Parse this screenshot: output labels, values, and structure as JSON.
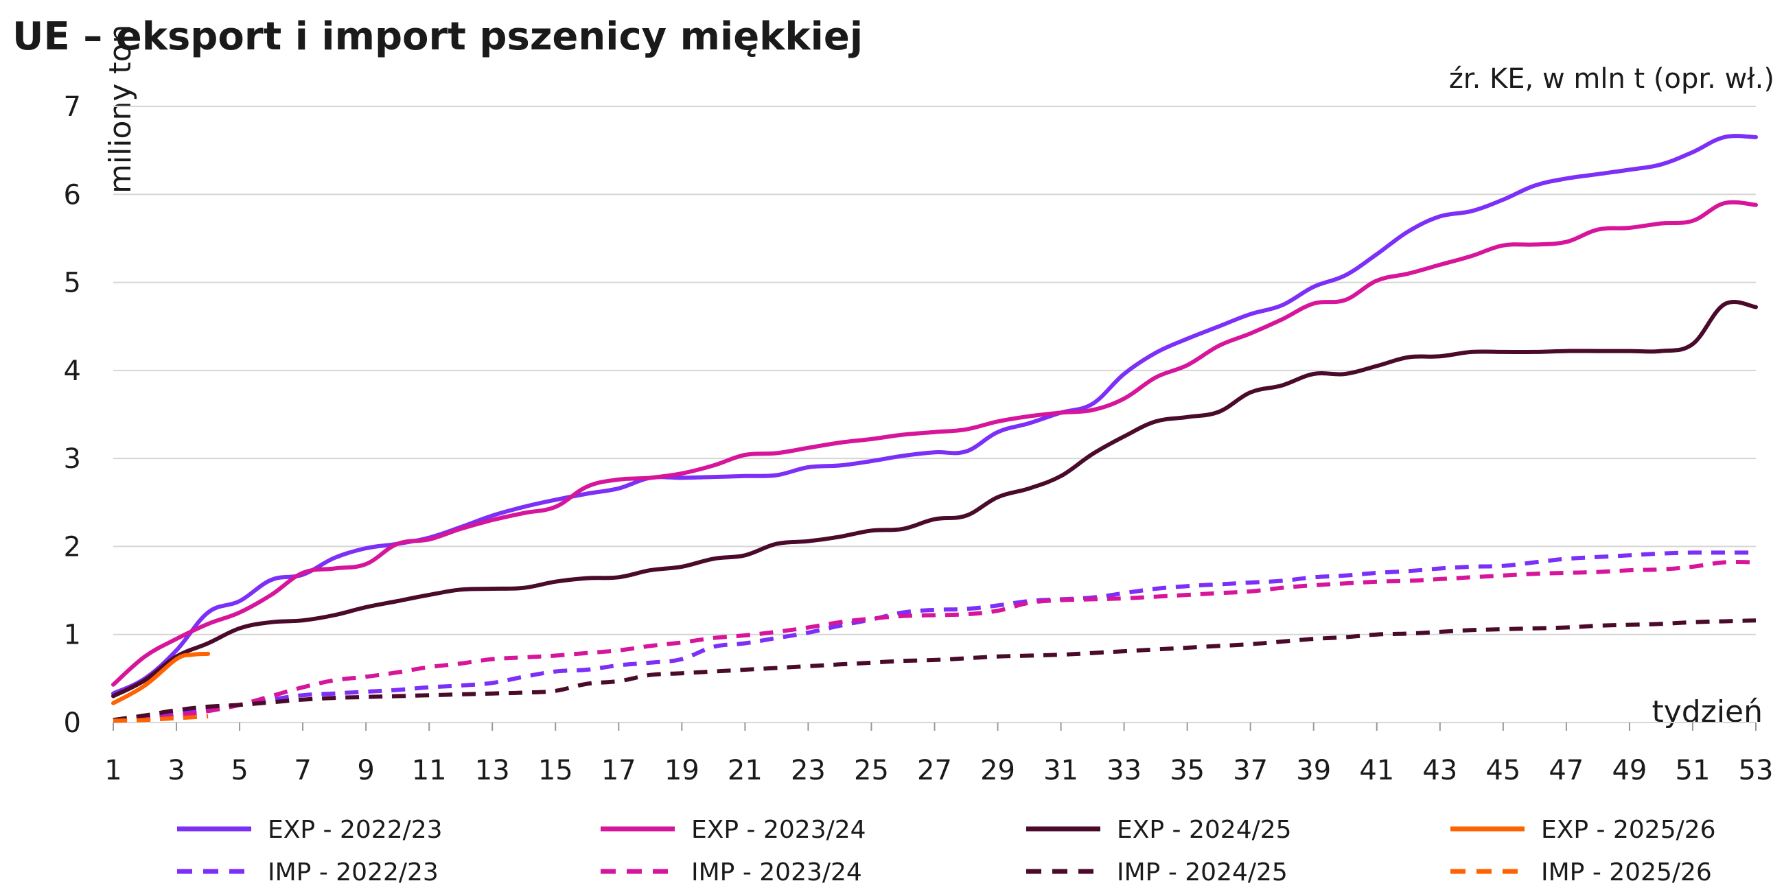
{
  "chart_data": {
    "type": "line",
    "title": "UE – eksport i import pszenicy miękkiej",
    "source": "źr. KE, w mln t (opr. wł.)",
    "ylabel": "miliony ton",
    "xlabel": "tydzień",
    "ylim": [
      0,
      7
    ],
    "xlim": [
      1,
      53
    ],
    "yticks": [
      "0",
      "1",
      "2",
      "3",
      "4",
      "5",
      "6",
      "7"
    ],
    "xticks": [
      "1",
      "3",
      "5",
      "7",
      "9",
      "11",
      "13",
      "15",
      "17",
      "19",
      "21",
      "23",
      "25",
      "27",
      "29",
      "31",
      "33",
      "35",
      "37",
      "39",
      "41",
      "43",
      "45",
      "47",
      "49",
      "51",
      "53"
    ],
    "grid": true,
    "legend_position": "bottom",
    "series": [
      {
        "name": "EXP - 2022/23",
        "color": "#7b2ff7",
        "style": "solid",
        "x": [
          1,
          2,
          3,
          4,
          5,
          6,
          7,
          8,
          9,
          10,
          11,
          12,
          13,
          14,
          15,
          16,
          17,
          18,
          19,
          20,
          21,
          22,
          23,
          24,
          25,
          26,
          27,
          28,
          29,
          30,
          31,
          32,
          33,
          34,
          35,
          36,
          37,
          38,
          39,
          40,
          41,
          42,
          43,
          44,
          45,
          46,
          47,
          48,
          49,
          50,
          51,
          52,
          53
        ],
        "values": [
          0.33,
          0.5,
          0.82,
          1.25,
          1.38,
          1.62,
          1.68,
          1.87,
          1.98,
          2.03,
          2.1,
          2.22,
          2.35,
          2.45,
          2.53,
          2.6,
          2.66,
          2.78,
          2.78,
          2.79,
          2.8,
          2.81,
          2.9,
          2.92,
          2.97,
          3.03,
          3.07,
          3.08,
          3.3,
          3.4,
          3.52,
          3.62,
          3.96,
          4.2,
          4.36,
          4.5,
          4.64,
          4.74,
          4.95,
          5.08,
          5.32,
          5.58,
          5.75,
          5.81,
          5.94,
          6.1,
          6.18,
          6.23,
          6.28,
          6.34,
          6.48,
          6.65,
          6.65
        ]
      },
      {
        "name": "EXP - 2023/24",
        "color": "#d6159b",
        "style": "solid",
        "x": [
          1,
          2,
          3,
          4,
          5,
          6,
          7,
          8,
          9,
          10,
          11,
          12,
          13,
          14,
          15,
          16,
          17,
          18,
          19,
          20,
          21,
          22,
          23,
          24,
          25,
          26,
          27,
          28,
          29,
          30,
          31,
          32,
          33,
          34,
          35,
          36,
          37,
          38,
          39,
          40,
          41,
          42,
          43,
          44,
          45,
          46,
          47,
          48,
          49,
          50,
          51,
          52,
          53
        ],
        "values": [
          0.43,
          0.75,
          0.95,
          1.12,
          1.25,
          1.45,
          1.7,
          1.75,
          1.8,
          2.03,
          2.08,
          2.2,
          2.3,
          2.38,
          2.45,
          2.68,
          2.76,
          2.78,
          2.83,
          2.92,
          3.04,
          3.06,
          3.12,
          3.18,
          3.22,
          3.27,
          3.3,
          3.33,
          3.42,
          3.48,
          3.52,
          3.55,
          3.68,
          3.92,
          4.06,
          4.28,
          4.42,
          4.58,
          4.76,
          4.8,
          5.02,
          5.1,
          5.2,
          5.3,
          5.42,
          5.43,
          5.46,
          5.6,
          5.62,
          5.67,
          5.7,
          5.9,
          5.88
        ]
      },
      {
        "name": "EXP - 2024/25",
        "color": "#4a0a2a",
        "style": "solid",
        "x": [
          1,
          2,
          3,
          4,
          5,
          6,
          7,
          8,
          9,
          10,
          11,
          12,
          13,
          14,
          15,
          16,
          17,
          18,
          19,
          20,
          21,
          22,
          23,
          24,
          25,
          26,
          27,
          28,
          29,
          30,
          31,
          32,
          33,
          34,
          35,
          36,
          37,
          38,
          39,
          40,
          41,
          42,
          43,
          44,
          45,
          46,
          47,
          48,
          49,
          50,
          51,
          52,
          53
        ],
        "values": [
          0.3,
          0.48,
          0.75,
          0.9,
          1.07,
          1.14,
          1.16,
          1.22,
          1.31,
          1.38,
          1.45,
          1.51,
          1.52,
          1.53,
          1.6,
          1.64,
          1.65,
          1.73,
          1.77,
          1.86,
          1.9,
          2.03,
          2.06,
          2.11,
          2.18,
          2.2,
          2.31,
          2.35,
          2.56,
          2.66,
          2.8,
          3.05,
          3.25,
          3.42,
          3.47,
          3.53,
          3.75,
          3.83,
          3.96,
          3.96,
          4.05,
          4.15,
          4.16,
          4.21,
          4.21,
          4.21,
          4.22,
          4.22,
          4.22,
          4.22,
          4.3,
          4.75,
          4.72
        ]
      },
      {
        "name": "EXP - 2025/26",
        "color": "#ff6200",
        "style": "solid",
        "x": [
          1,
          2,
          3,
          3.5,
          4
        ],
        "values": [
          0.22,
          0.42,
          0.72,
          0.77,
          0.78
        ]
      },
      {
        "name": "IMP - 2022/23",
        "color": "#7b2ff7",
        "style": "dashed",
        "x": [
          1,
          2,
          3,
          4,
          5,
          6,
          7,
          8,
          9,
          10,
          11,
          12,
          13,
          14,
          15,
          16,
          17,
          18,
          19,
          20,
          21,
          22,
          23,
          24,
          25,
          26,
          27,
          28,
          29,
          30,
          31,
          32,
          33,
          34,
          35,
          36,
          37,
          38,
          39,
          40,
          41,
          42,
          43,
          44,
          45,
          46,
          47,
          48,
          49,
          50,
          51,
          52,
          53
        ],
        "values": [
          0.03,
          0.05,
          0.1,
          0.14,
          0.2,
          0.26,
          0.31,
          0.33,
          0.35,
          0.37,
          0.4,
          0.42,
          0.45,
          0.52,
          0.58,
          0.6,
          0.65,
          0.68,
          0.72,
          0.86,
          0.9,
          0.96,
          1.02,
          1.1,
          1.17,
          1.25,
          1.28,
          1.29,
          1.33,
          1.38,
          1.4,
          1.42,
          1.47,
          1.52,
          1.55,
          1.57,
          1.59,
          1.61,
          1.65,
          1.67,
          1.7,
          1.72,
          1.75,
          1.77,
          1.78,
          1.82,
          1.86,
          1.88,
          1.9,
          1.92,
          1.93,
          1.93,
          1.93
        ]
      },
      {
        "name": "IMP - 2023/24",
        "color": "#d6159b",
        "style": "dashed",
        "x": [
          1,
          2,
          3,
          4,
          5,
          6,
          7,
          8,
          9,
          10,
          11,
          12,
          13,
          14,
          15,
          16,
          17,
          18,
          19,
          20,
          21,
          22,
          23,
          24,
          25,
          26,
          27,
          28,
          29,
          30,
          31,
          32,
          33,
          34,
          35,
          36,
          37,
          38,
          39,
          40,
          41,
          42,
          43,
          44,
          45,
          46,
          47,
          48,
          49,
          50,
          51,
          52,
          53
        ],
        "values": [
          0.02,
          0.04,
          0.08,
          0.13,
          0.2,
          0.3,
          0.4,
          0.48,
          0.52,
          0.57,
          0.63,
          0.67,
          0.72,
          0.74,
          0.76,
          0.79,
          0.82,
          0.87,
          0.91,
          0.96,
          0.99,
          1.03,
          1.08,
          1.14,
          1.18,
          1.21,
          1.22,
          1.23,
          1.27,
          1.36,
          1.39,
          1.4,
          1.41,
          1.43,
          1.45,
          1.47,
          1.49,
          1.53,
          1.56,
          1.58,
          1.6,
          1.61,
          1.63,
          1.65,
          1.67,
          1.69,
          1.7,
          1.71,
          1.73,
          1.74,
          1.77,
          1.82,
          1.82
        ]
      },
      {
        "name": "IMP - 2024/25",
        "color": "#4a0a2a",
        "style": "dashed",
        "x": [
          1,
          2,
          3,
          4,
          5,
          6,
          7,
          8,
          9,
          10,
          11,
          12,
          13,
          14,
          15,
          16,
          17,
          18,
          19,
          20,
          21,
          22,
          23,
          24,
          25,
          26,
          27,
          28,
          29,
          30,
          31,
          32,
          33,
          34,
          35,
          36,
          37,
          38,
          39,
          40,
          41,
          42,
          43,
          44,
          45,
          46,
          47,
          48,
          49,
          50,
          51,
          52,
          53
        ],
        "values": [
          0.03,
          0.08,
          0.14,
          0.18,
          0.2,
          0.23,
          0.26,
          0.28,
          0.29,
          0.3,
          0.31,
          0.32,
          0.33,
          0.34,
          0.36,
          0.44,
          0.47,
          0.54,
          0.56,
          0.58,
          0.6,
          0.62,
          0.64,
          0.66,
          0.68,
          0.7,
          0.71,
          0.73,
          0.75,
          0.76,
          0.77,
          0.79,
          0.81,
          0.83,
          0.85,
          0.87,
          0.89,
          0.92,
          0.95,
          0.97,
          1.0,
          1.01,
          1.03,
          1.05,
          1.06,
          1.07,
          1.08,
          1.1,
          1.11,
          1.12,
          1.14,
          1.15,
          1.16
        ]
      },
      {
        "name": "IMP - 2025/26",
        "color": "#ff6200",
        "style": "dashed",
        "x": [
          1,
          2,
          3,
          4
        ],
        "values": [
          0.02,
          0.03,
          0.05,
          0.07
        ]
      }
    ]
  }
}
